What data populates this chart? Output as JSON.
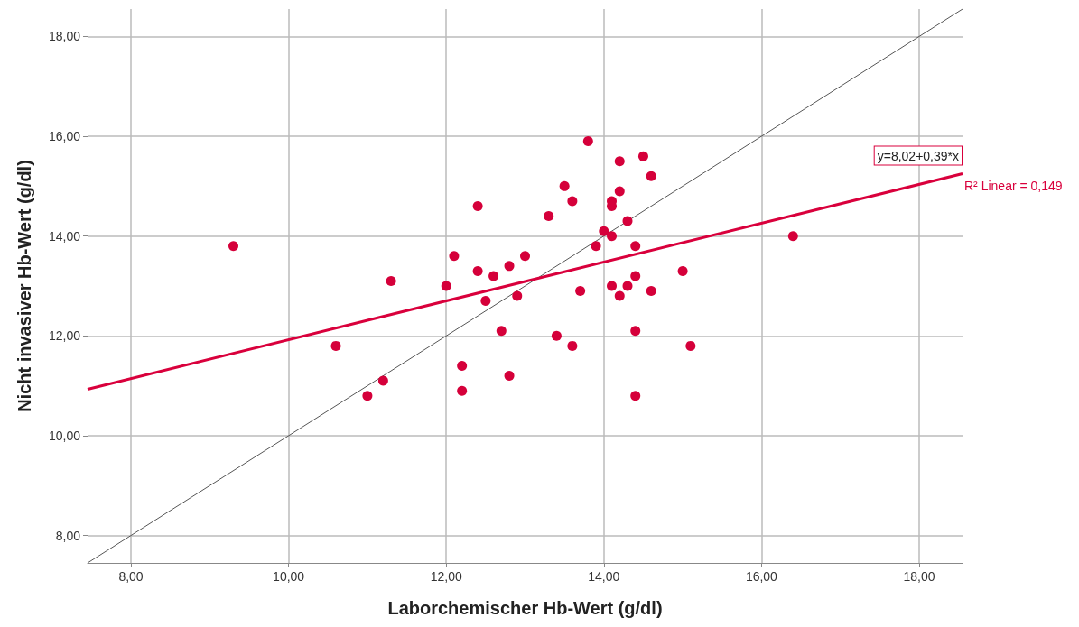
{
  "chart_data": {
    "type": "scatter",
    "xlabel": "Laborchemischer Hb-Wert (g/dl)",
    "ylabel": "Nicht invasiver Hb-Wert (g/dl)",
    "xlim": [
      7.45,
      18.55
    ],
    "ylim": [
      7.45,
      18.55
    ],
    "xticks": [
      {
        "value": 8,
        "label": "8,00"
      },
      {
        "value": 10,
        "label": "10,00"
      },
      {
        "value": 12,
        "label": "12,00"
      },
      {
        "value": 14,
        "label": "14,00"
      },
      {
        "value": 16,
        "label": "16,00"
      },
      {
        "value": 18,
        "label": "18,00"
      }
    ],
    "yticks": [
      {
        "value": 8,
        "label": "8,00"
      },
      {
        "value": 10,
        "label": "10,00"
      },
      {
        "value": 12,
        "label": "12,00"
      },
      {
        "value": 14,
        "label": "14,00"
      },
      {
        "value": 16,
        "label": "16,00"
      },
      {
        "value": 18,
        "label": "18,00"
      }
    ],
    "grid": true,
    "annotations": [
      "y=8,02+0,39*x",
      "R² Linear = 0,149"
    ],
    "series": [
      {
        "color": "#d5003a",
        "marker": "circle",
        "x": [
          9.3,
          10.6,
          11.0,
          11.2,
          11.3,
          12.0,
          12.1,
          12.2,
          12.2,
          12.4,
          12.4,
          12.5,
          12.6,
          12.7,
          12.8,
          12.8,
          12.9,
          13.0,
          13.3,
          13.4,
          13.5,
          13.6,
          13.6,
          13.7,
          13.8,
          13.9,
          14.0,
          14.1,
          14.1,
          14.1,
          14.1,
          14.2,
          14.2,
          14.2,
          14.3,
          14.3,
          14.4,
          14.4,
          14.4,
          14.4,
          14.5,
          14.6,
          14.6,
          15.0,
          15.1,
          16.4
        ],
        "values": [
          13.8,
          11.8,
          10.8,
          11.1,
          13.1,
          13.0,
          13.6,
          11.4,
          10.9,
          14.6,
          13.3,
          12.7,
          13.2,
          12.1,
          11.2,
          13.4,
          12.8,
          13.6,
          14.4,
          12.0,
          15.0,
          14.7,
          11.8,
          12.9,
          15.9,
          13.8,
          14.1,
          14.7,
          14.6,
          14.0,
          13.0,
          15.5,
          14.9,
          12.8,
          14.3,
          13.0,
          13.8,
          13.2,
          12.1,
          10.8,
          15.6,
          15.2,
          12.9,
          13.3,
          11.8,
          14.0
        ]
      },
      {
        "type": "line",
        "color": "#555555",
        "marker": "none",
        "line_style": "solid",
        "x": [
          7.45,
          18.55
        ],
        "values": [
          7.45,
          18.55
        ]
      },
      {
        "type": "line",
        "color": "#d9003c",
        "marker": "none",
        "line_style": "solid",
        "x": [
          7.45,
          18.55
        ],
        "values": [
          10.93,
          15.25
        ]
      }
    ]
  }
}
